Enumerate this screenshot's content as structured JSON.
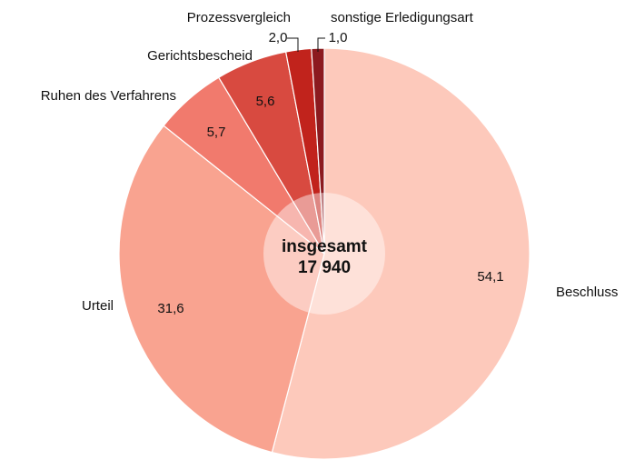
{
  "chart_data": {
    "type": "pie",
    "categories": [
      "Beschluss",
      "Urteil",
      "Ruhen des Verfahrens",
      "Gerichtsbescheid",
      "Prozessvergleich",
      "sonstige Erledigungsart"
    ],
    "values": [
      54.1,
      31.6,
      5.7,
      5.6,
      2.0,
      1.0
    ],
    "value_labels": [
      "54,1",
      "31,6",
      "5,7",
      "5,6",
      "2,0",
      "1,0"
    ],
    "colors": [
      "#fdc9bb",
      "#f9a390",
      "#f17a6d",
      "#d84a40",
      "#c1231c",
      "#8c1a1f"
    ],
    "center_title": "insgesamt",
    "total": 17940,
    "total_label": "17 940"
  }
}
